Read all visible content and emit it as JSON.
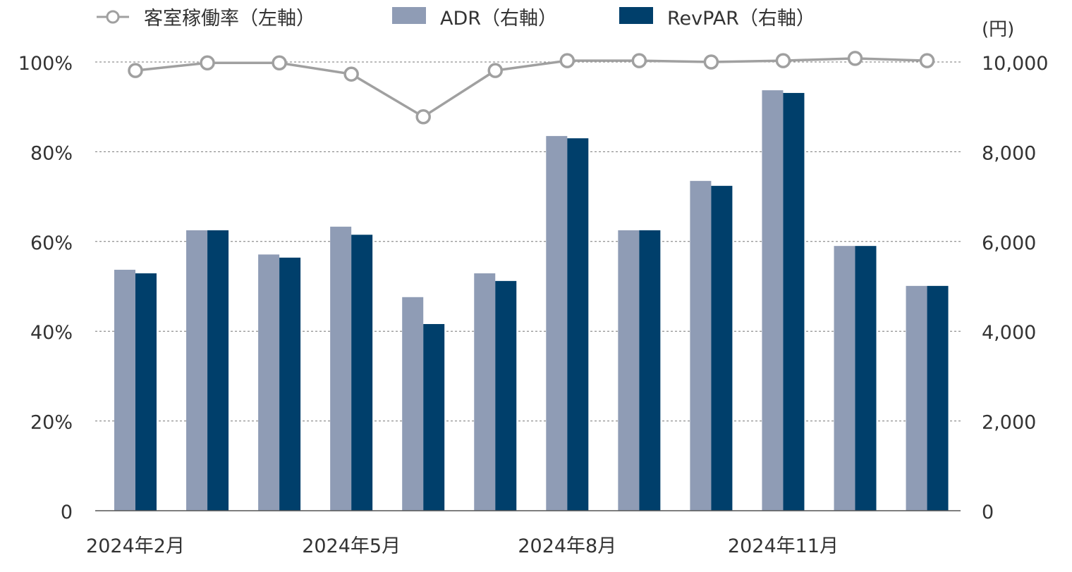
{
  "chart_data": {
    "type": "bar+line",
    "x_tick_labels": [
      "2024年2月",
      "",
      "",
      "2024年5月",
      "",
      "",
      "2024年8月",
      "",
      "",
      "2024年11月",
      "",
      ""
    ],
    "legend": {
      "placement": "top"
    },
    "series": [
      {
        "name": "客室稼働率（左軸）",
        "type": "line",
        "axis": "left",
        "color": "#a0a0a0",
        "values": [
          98.1,
          99.8,
          99.8,
          97.3,
          87.8,
          98.1,
          100.3,
          100.3,
          100.0,
          100.3,
          100.8,
          100.3
        ]
      },
      {
        "name": "ADR（右軸）",
        "type": "bar",
        "axis": "right",
        "color": "#8f9cb5",
        "values": [
          5370,
          6250,
          5710,
          6330,
          4760,
          5290,
          8350,
          6250,
          7350,
          9370,
          5900,
          5010
        ]
      },
      {
        "name": "RevPAR（右軸）",
        "type": "bar",
        "axis": "right",
        "color": "#003f6b",
        "values": [
          5290,
          6250,
          5640,
          6150,
          4160,
          5120,
          8300,
          6250,
          7240,
          9310,
          5900,
          5010
        ]
      }
    ],
    "left_axis": {
      "ylim": [
        0,
        100
      ],
      "tick_labels": [
        "0",
        "20%",
        "40%",
        "60%",
        "80%",
        "100%"
      ],
      "ticks": [
        0,
        20,
        40,
        60,
        80,
        100
      ]
    },
    "right_axis": {
      "unit_label": "(円)",
      "ylim": [
        0,
        10000
      ],
      "tick_labels": [
        "0",
        "2,000",
        "4,000",
        "6,000",
        "8,000",
        "10,000"
      ],
      "ticks": [
        0,
        2000,
        4000,
        6000,
        8000,
        10000
      ]
    },
    "grid": "horizontal dotted"
  }
}
